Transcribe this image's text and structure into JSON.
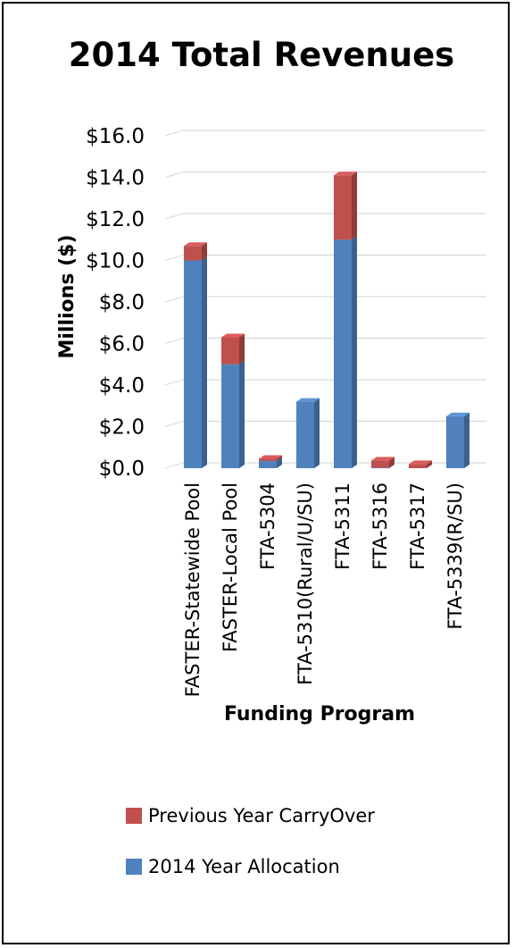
{
  "chart_data": {
    "type": "bar",
    "stacked": true,
    "title": "2014 Total Revenues",
    "xlabel": "Funding Program",
    "ylabel": "Millions ($)",
    "ylim": [
      0,
      16
    ],
    "yticks": [
      "$0.0",
      "$2.0",
      "$4.0",
      "$6.0",
      "$8.0",
      "$10.0",
      "$12.0",
      "$14.0",
      "$16.0"
    ],
    "grid": true,
    "legend_position": "bottom",
    "categories": [
      "FASTER-Statewide Pool",
      "FASTER-Local Pool",
      "FTA-5304",
      "FTA-5310(Rural/U/SU)",
      "FTA-5311",
      "FTA-5316",
      "FTA-5317",
      "FTA-5339(R/SU)"
    ],
    "series": [
      {
        "name": "2014 Year Allocation",
        "color": "#4F81BD",
        "values": [
          10.0,
          5.0,
          0.35,
          3.2,
          11.0,
          0.02,
          0.0,
          2.5
        ]
      },
      {
        "name": "Previous Year CarryOver",
        "color": "#C0504D",
        "values": [
          0.7,
          1.3,
          0.1,
          0.0,
          3.1,
          0.35,
          0.2,
          0.0
        ]
      }
    ],
    "legend_order": [
      "Previous Year CarryOver",
      "2014 Year Allocation"
    ]
  }
}
